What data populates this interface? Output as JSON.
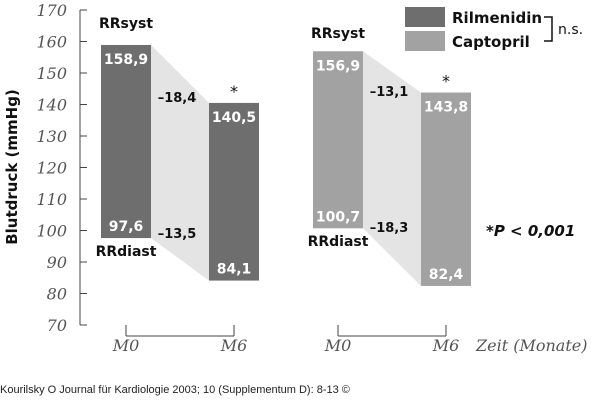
{
  "chart_data": {
    "type": "bar",
    "ylabel": "Blutdruck (mmHg)",
    "ylim": [
      70,
      170
    ],
    "yticks": [
      70,
      80,
      90,
      100,
      110,
      120,
      130,
      140,
      150,
      160,
      170
    ],
    "x_axis_caption": "Zeit (Monate)",
    "grid": false,
    "legend_position": "top-right",
    "groups": [
      {
        "name": "Rilmenidin",
        "color": "#6e6e6e",
        "bars": [
          {
            "time": "M0",
            "systolic": 158.9,
            "diastolic": 97.6,
            "systolic_label": "158,9",
            "diastolic_label": "97,6"
          },
          {
            "time": "M6",
            "systolic": 140.5,
            "diastolic": 84.1,
            "systolic_label": "140,5",
            "diastolic_label": "84,1",
            "marker": "*"
          }
        ],
        "change_systolic": "–18,4",
        "change_diastolic": "–13,5",
        "label_syst": "RRsyst",
        "label_diast": "RRdiast"
      },
      {
        "name": "Captopril",
        "color": "#a2a2a2",
        "bars": [
          {
            "time": "M0",
            "systolic": 156.9,
            "diastolic": 100.7,
            "systolic_label": "156,9",
            "diastolic_label": "100,7"
          },
          {
            "time": "M6",
            "systolic": 143.8,
            "diastolic": 82.4,
            "systolic_label": "143,8",
            "diastolic_label": "82,4",
            "marker": "*"
          }
        ],
        "change_systolic": "–13,1",
        "change_diastolic": "–18,3",
        "label_syst": "RRsyst",
        "label_diast": "RRdiast"
      }
    ],
    "legend": [
      {
        "label": "Rilmenidin",
        "color": "#6e6e6e"
      },
      {
        "label": "Captopril",
        "color": "#a2a2a2"
      }
    ],
    "legend_note": "n.s.",
    "significance": "*P < 0,001"
  },
  "source_credit": "Kourilsky O Journal für Kardiologie 2003; 10 (Supplementum D): 8-13 ©"
}
